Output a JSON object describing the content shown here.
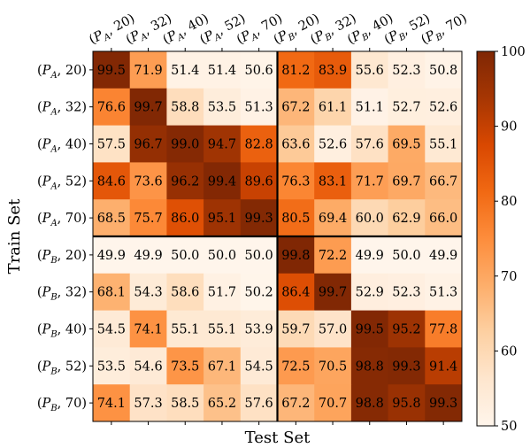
{
  "chart_data": {
    "type": "heatmap",
    "xlabel": "Test Set",
    "ylabel": "Train Set",
    "rows": [
      {
        "group": "P",
        "sub": "A",
        "num": "20"
      },
      {
        "group": "P",
        "sub": "A",
        "num": "32"
      },
      {
        "group": "P",
        "sub": "A",
        "num": "40"
      },
      {
        "group": "P",
        "sub": "A",
        "num": "52"
      },
      {
        "group": "P",
        "sub": "A",
        "num": "70"
      },
      {
        "group": "P",
        "sub": "B",
        "num": "20"
      },
      {
        "group": "P",
        "sub": "B",
        "num": "32"
      },
      {
        "group": "P",
        "sub": "B",
        "num": "40"
      },
      {
        "group": "P",
        "sub": "B",
        "num": "52"
      },
      {
        "group": "P",
        "sub": "B",
        "num": "70"
      }
    ],
    "columns": [
      {
        "group": "P",
        "sub": "A",
        "num": "20"
      },
      {
        "group": "P",
        "sub": "A",
        "num": "32"
      },
      {
        "group": "P",
        "sub": "A",
        "num": "40"
      },
      {
        "group": "P",
        "sub": "A",
        "num": "52"
      },
      {
        "group": "P",
        "sub": "A",
        "num": "70"
      },
      {
        "group": "P",
        "sub": "B",
        "num": "20"
      },
      {
        "group": "P",
        "sub": "B",
        "num": "32"
      },
      {
        "group": "P",
        "sub": "B",
        "num": "40"
      },
      {
        "group": "P",
        "sub": "B",
        "num": "52"
      },
      {
        "group": "P",
        "sub": "B",
        "num": "70"
      }
    ],
    "values": [
      [
        99.5,
        71.9,
        51.4,
        51.4,
        50.6,
        81.2,
        83.9,
        55.6,
        52.3,
        50.8
      ],
      [
        76.6,
        99.7,
        58.8,
        53.5,
        51.3,
        67.2,
        61.1,
        51.1,
        52.7,
        52.6
      ],
      [
        57.5,
        96.7,
        99.0,
        94.7,
        82.8,
        63.6,
        52.6,
        57.6,
        69.5,
        55.1
      ],
      [
        84.6,
        73.6,
        96.2,
        99.4,
        89.6,
        76.3,
        83.1,
        71.7,
        69.7,
        66.7
      ],
      [
        68.5,
        75.7,
        86.0,
        95.1,
        99.3,
        80.5,
        69.4,
        60.0,
        62.9,
        66.0
      ],
      [
        49.9,
        49.9,
        50.0,
        50.0,
        50.0,
        99.8,
        72.2,
        49.9,
        50.0,
        49.9
      ],
      [
        68.1,
        54.3,
        58.6,
        51.7,
        50.2,
        86.4,
        99.7,
        52.9,
        52.3,
        51.3
      ],
      [
        54.5,
        74.1,
        55.1,
        55.1,
        53.9,
        59.7,
        57.0,
        99.5,
        95.2,
        77.8
      ],
      [
        53.5,
        54.6,
        73.5,
        67.1,
        54.5,
        72.5,
        70.5,
        98.8,
        99.3,
        91.4
      ],
      [
        74.1,
        57.3,
        58.5,
        65.2,
        57.6,
        67.2,
        70.7,
        98.8,
        95.8,
        99.3
      ]
    ],
    "colorbar": {
      "range": [
        50,
        100
      ],
      "ticks": [
        50,
        60,
        70,
        80,
        90,
        100
      ],
      "colormap": "Oranges"
    },
    "block_split": 5,
    "colors": {
      "low": "#fff5eb",
      "high": "#7f2704",
      "dark_text_threshold": 0.78
    }
  }
}
